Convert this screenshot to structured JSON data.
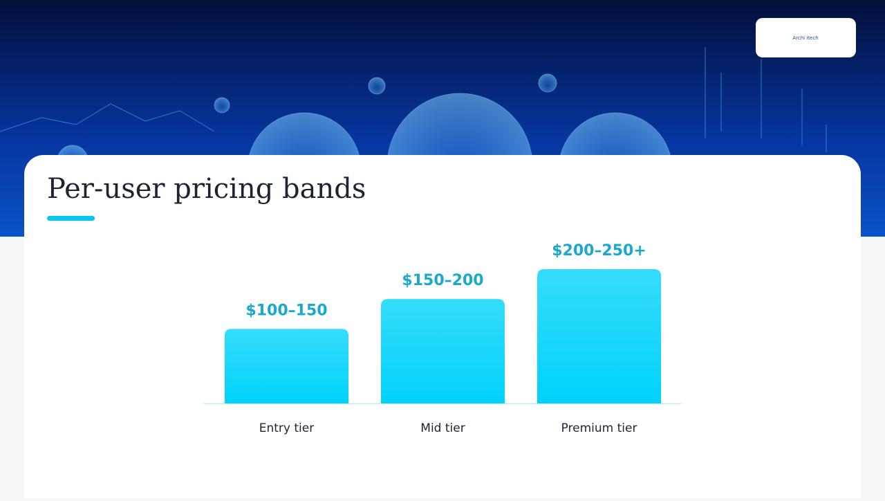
{
  "logo_text": "Archi itech",
  "chart_data": {
    "type": "bar",
    "title": "Per-user pricing bands",
    "categories": [
      "Entry tier",
      "Mid tier",
      "Premium tier"
    ],
    "values": [
      [
        100,
        150
      ],
      [
        150,
        200
      ],
      [
        200,
        250
      ]
    ],
    "value_labels": [
      "$100–150",
      "$150–200",
      "$200–250+"
    ],
    "color": "#00d2fb",
    "label_color": "#1aa8cf"
  }
}
